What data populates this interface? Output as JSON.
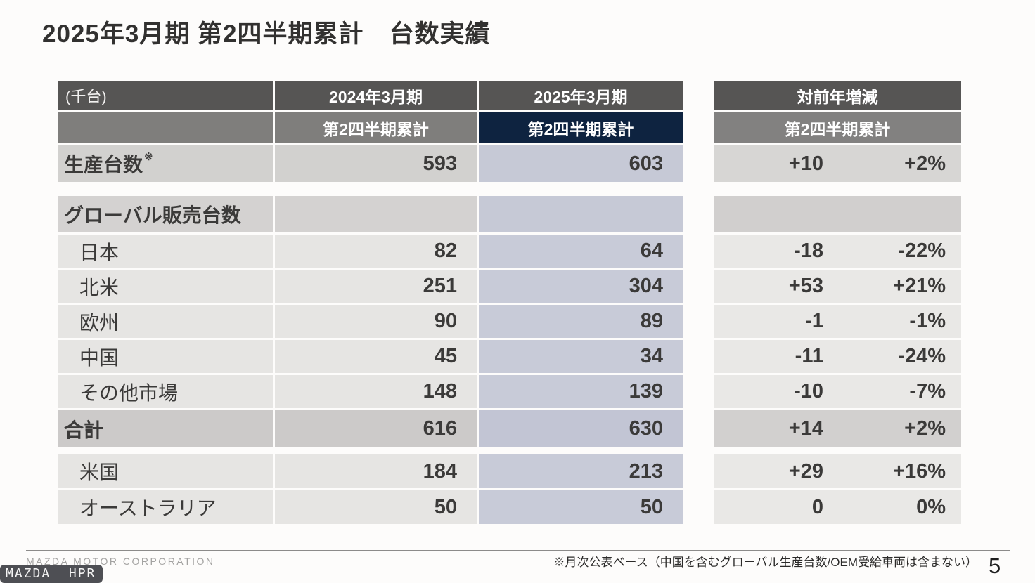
{
  "title": "2025年3月期 第2四半期累計　台数実績",
  "table": {
    "unit": "(千台)",
    "headers": {
      "fy2024": "2024年3月期",
      "fy2025": "2025年3月期",
      "yoy": "対前年増減",
      "subperiod": "第2四半期累計"
    },
    "production": {
      "label": "生産台数",
      "note": "※",
      "fy2024": "593",
      "fy2025": "603",
      "diff": "+10",
      "pct": "+2%"
    },
    "sales_section_label": "グローバル販売台数",
    "sales_rows": [
      {
        "label": "日本",
        "fy2024": "82",
        "fy2025": "64",
        "diff": "-18",
        "pct": "-22%"
      },
      {
        "label": "北米",
        "fy2024": "251",
        "fy2025": "304",
        "diff": "+53",
        "pct": "+21%"
      },
      {
        "label": "欧州",
        "fy2024": "90",
        "fy2025": "89",
        "diff": "-1",
        "pct": "-1%"
      },
      {
        "label": "中国",
        "fy2024": "45",
        "fy2025": "34",
        "diff": "-11",
        "pct": "-24%"
      },
      {
        "label": "その他市場",
        "fy2024": "148",
        "fy2025": "139",
        "diff": "-10",
        "pct": "-7%"
      }
    ],
    "total_row": {
      "label": "合計",
      "fy2024": "616",
      "fy2025": "630",
      "diff": "+14",
      "pct": "+2%"
    },
    "memo_rows": [
      {
        "label": "米国",
        "fy2024": "184",
        "fy2025": "213",
        "diff": "+29",
        "pct": "+16%"
      },
      {
        "label": "オーストラリア",
        "fy2024": "50",
        "fy2025": "50",
        "diff": "0",
        "pct": "0%"
      }
    ]
  },
  "footer": {
    "company": "MAZDA MOTOR CORPORATION",
    "footnote": "※月次公表ベース（中国を含むグローバル生産台数/OEM受給車両は含まない）",
    "page_number": "5"
  },
  "overlay": {
    "label": "MAZDA  HPR"
  },
  "colors": {
    "accent_navy": "#0e2340",
    "header_gray": "#565554",
    "highlight_blue": "#c6c9d6"
  }
}
